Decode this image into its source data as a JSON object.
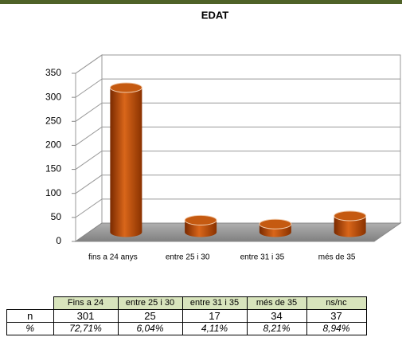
{
  "chart_data": {
    "type": "bar3d",
    "title": "EDAT",
    "categories": [
      "fins a 24 anys",
      "entre 25 i 30",
      "entre 31 i 35",
      "més de 35"
    ],
    "values": [
      301,
      25,
      17,
      34
    ],
    "color": "#c55a11",
    "ylim": [
      0,
      350
    ],
    "yticks": [
      0,
      50,
      100,
      150,
      200,
      250,
      300,
      350
    ],
    "grid": true
  },
  "table": {
    "columns": [
      "Fins a 24",
      "entre 25 i 30",
      "entre 31 i 35",
      "més de 35",
      "ns/nc"
    ],
    "rows": [
      {
        "label": "n",
        "values": [
          301,
          25,
          17,
          34,
          37
        ]
      },
      {
        "label": "%",
        "values": [
          "72,71%",
          "6,04%",
          "4,11%",
          "8,21%",
          "8,94%"
        ]
      }
    ]
  }
}
